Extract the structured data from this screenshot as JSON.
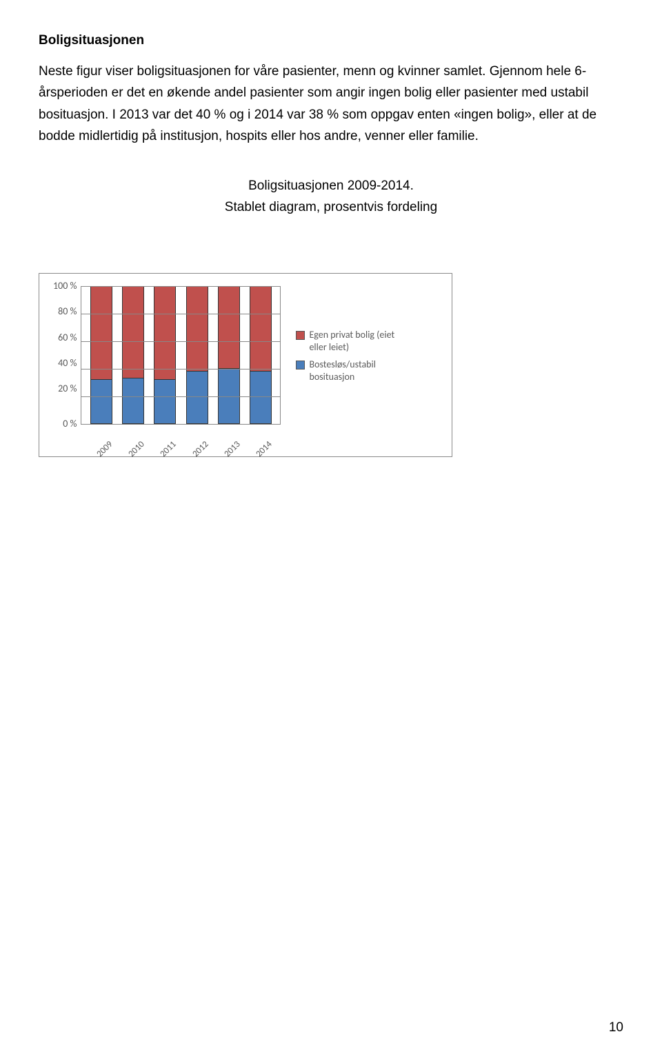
{
  "heading": "Boligsituasjonen",
  "paragraph": "Neste figur viser boligsituasjonen for våre pasienter, menn og kvinner samlet. Gjennom hele 6-årsperioden er det en økende andel pasienter som angir ingen bolig eller pasienter med ustabil bosituasjon. I 2013 var det 40 % og i 2014 var 38 % som oppgav enten «ingen bolig», eller at de bodde midlertidig på institusjon, hospits eller hos andre, venner eller familie.",
  "chart_title_line1": "Boligsituasjonen 2009-2014.",
  "chart_title_line2": "Stablet diagram, prosentvis fordeling",
  "chart": {
    "type": "stacked-bar",
    "categories": [
      "2009",
      "2010",
      "2011",
      "2012",
      "2013",
      "2014"
    ],
    "series": [
      {
        "name": "Bostesløs/ustabil bosituasjon",
        "color": "#4a7ebb",
        "values": [
          32,
          33,
          32,
          38,
          40,
          38
        ]
      },
      {
        "name": "Egen privat bolig (eiet eller leiet)",
        "color": "#c0504d",
        "values": [
          68,
          67,
          68,
          62,
          60,
          62
        ]
      }
    ],
    "y_ticks": [
      "100 %",
      "80 %",
      "60 %",
      "40 %",
      "20 %",
      "0 %"
    ],
    "ylim": [
      0,
      100
    ],
    "grid_color": "#888888",
    "plot_bg": "#ffffff",
    "bar_border": "#333333",
    "ytick_step": 20
  },
  "page_number": "10"
}
